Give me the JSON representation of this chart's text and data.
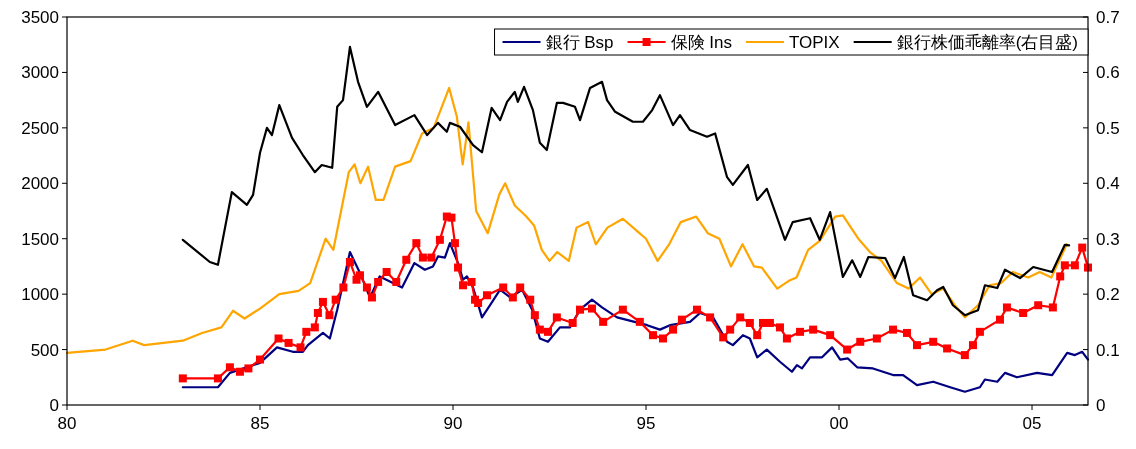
{
  "chart_data": {
    "type": "line",
    "xlim": [
      1980,
      2006.45
    ],
    "xticks": [
      {
        "value": 1980,
        "label": "80"
      },
      {
        "value": 1985,
        "label": "85"
      },
      {
        "value": 1990,
        "label": "90"
      },
      {
        "value": 1995,
        "label": "95"
      },
      {
        "value": 2000,
        "label": "00"
      },
      {
        "value": 2005,
        "label": "05"
      }
    ],
    "ylim": [
      0,
      3500
    ],
    "yticks": [
      0,
      500,
      1000,
      1500,
      2000,
      2500,
      3000,
      3500
    ],
    "y2lim": [
      0,
      0.7
    ],
    "y2ticks": [
      0,
      0.1,
      0.2,
      0.3,
      0.4,
      0.5,
      0.6,
      0.7
    ],
    "grid": false,
    "legend": "top right",
    "series": [
      {
        "name": "銀行 Bsp",
        "color": "#000080",
        "marker": "none",
        "x": [
          1983.0,
          1983.91,
          1984.22,
          1985.0,
          1985.44,
          1985.85,
          1986.11,
          1986.24,
          1986.63,
          1986.81,
          1987.0,
          1987.33,
          1987.59,
          1987.85,
          1988.1,
          1988.68,
          1989.0,
          1989.27,
          1989.48,
          1989.61,
          1989.79,
          1989.92,
          1990.13,
          1990.26,
          1990.36,
          1990.52,
          1990.75,
          1990.96,
          1991.22,
          1991.48,
          1991.79,
          1992.05,
          1992.25,
          1992.46,
          1992.77,
          1993.03,
          1993.29,
          1993.6,
          1993.86,
          1994.25,
          1995.03,
          1995.36,
          1995.62,
          1996.14,
          1996.4,
          1996.74,
          1997.1,
          1997.25,
          1997.51,
          1997.69,
          1997.88,
          1998.13,
          1998.47,
          1998.78,
          1998.91,
          1999.04,
          1999.25,
          1999.56,
          1999.82,
          2000.03,
          2000.23,
          2000.47,
          2000.88,
          2001.4,
          2001.66,
          2002.02,
          2002.44,
          2002.88,
          2003.26,
          2003.65,
          2003.78,
          2004.1,
          2004.3,
          2004.61,
          2005.13,
          2005.52,
          2005.91,
          2006.11,
          2006.3,
          2006.45
        ],
        "values": [
          160,
          160,
          290,
          380,
          520,
          480,
          480,
          540,
          650,
          600,
          860,
          1380,
          1190,
          970,
          1160,
          1060,
          1280,
          1220,
          1250,
          1340,
          1330,
          1460,
          1280,
          1130,
          1160,
          1060,
          790,
          900,
          1040,
          970,
          1040,
          860,
          600,
          570,
          700,
          700,
          860,
          950,
          880,
          790,
          720,
          680,
          720,
          750,
          830,
          790,
          570,
          540,
          630,
          600,
          430,
          500,
          390,
          300,
          360,
          330,
          430,
          430,
          520,
          410,
          420,
          340,
          330,
          270,
          270,
          180,
          210,
          160,
          120,
          160,
          230,
          210,
          290,
          250,
          290,
          270,
          470,
          450,
          480,
          410
        ]
      },
      {
        "name": "保険 Ins",
        "color": "#ff0000",
        "marker": "square",
        "x": [
          1983.0,
          1983.91,
          1984.22,
          1984.48,
          1984.7,
          1985.0,
          1985.48,
          1985.74,
          1986.05,
          1986.2,
          1986.42,
          1986.5,
          1986.63,
          1986.8,
          1986.96,
          1987.16,
          1987.33,
          1987.5,
          1987.59,
          1987.77,
          1987.9,
          1988.06,
          1988.28,
          1988.53,
          1988.79,
          1989.05,
          1989.22,
          1989.44,
          1989.66,
          1989.84,
          1989.96,
          1990.05,
          1990.13,
          1990.26,
          1990.48,
          1990.57,
          1990.65,
          1990.88,
          1991.3,
          1991.55,
          1991.74,
          1992.0,
          1992.12,
          1992.25,
          1992.46,
          1992.69,
          1993.1,
          1993.29,
          1993.6,
          1993.89,
          1994.4,
          1994.84,
          1995.18,
          1995.44,
          1995.7,
          1995.93,
          1996.32,
          1996.66,
          1997.0,
          1997.18,
          1997.44,
          1997.69,
          1997.88,
          1998.03,
          1998.21,
          1998.47,
          1998.65,
          1998.99,
          1999.33,
          1999.77,
          2000.21,
          2000.55,
          2000.98,
          2001.4,
          2001.76,
          2002.02,
          2002.44,
          2002.8,
          2003.26,
          2003.47,
          2003.65,
          2004.17,
          2004.35,
          2004.77,
          2005.16,
          2005.54,
          2005.73,
          2005.85,
          2006.11,
          2006.3,
          2006.45
        ],
        "values": [
          240,
          240,
          340,
          300,
          330,
          410,
          600,
          560,
          520,
          660,
          700,
          830,
          930,
          810,
          950,
          1060,
          1290,
          1130,
          1170,
          1060,
          970,
          1110,
          1200,
          1110,
          1310,
          1460,
          1330,
          1330,
          1490,
          1700,
          1690,
          1460,
          1240,
          1080,
          1110,
          950,
          920,
          990,
          1060,
          970,
          1060,
          950,
          810,
          680,
          660,
          790,
          740,
          860,
          870,
          750,
          860,
          750,
          630,
          600,
          680,
          770,
          860,
          790,
          610,
          680,
          790,
          740,
          630,
          740,
          740,
          700,
          600,
          660,
          680,
          630,
          500,
          570,
          600,
          680,
          650,
          540,
          570,
          510,
          450,
          540,
          660,
          770,
          880,
          830,
          900,
          880,
          1160,
          1260,
          1260,
          1420,
          1240
        ]
      },
      {
        "name": "TOPIX",
        "color": "#ffa500",
        "marker": "none",
        "x": [
          1980.0,
          1981.0,
          1981.7,
          1982.0,
          1982.5,
          1983.0,
          1983.5,
          1984.0,
          1984.3,
          1984.6,
          1985.0,
          1985.5,
          1986.0,
          1986.3,
          1986.7,
          1986.9,
          1987.3,
          1987.45,
          1987.6,
          1987.8,
          1988.0,
          1988.2,
          1988.5,
          1988.9,
          1989.2,
          1989.5,
          1989.9,
          1990.1,
          1990.25,
          1990.4,
          1990.6,
          1990.9,
          1991.2,
          1991.35,
          1991.6,
          1991.9,
          1992.1,
          1992.3,
          1992.5,
          1992.7,
          1993.0,
          1993.2,
          1993.5,
          1993.7,
          1994.0,
          1994.4,
          1994.8,
          1995.0,
          1995.3,
          1995.6,
          1995.9,
          1996.3,
          1996.6,
          1996.9,
          1997.2,
          1997.5,
          1997.8,
          1998.0,
          1998.4,
          1998.7,
          1998.9,
          1999.2,
          1999.5,
          1999.9,
          2000.1,
          2000.5,
          2000.8,
          2001.1,
          2001.5,
          2001.8,
          2002.1,
          2002.4,
          2002.7,
          2003.0,
          2003.26,
          2003.6,
          2003.9,
          2004.2,
          2004.5,
          2004.9,
          2005.2,
          2005.5,
          2005.9
        ],
        "values": [
          470,
          500,
          580,
          540,
          560,
          580,
          650,
          700,
          850,
          780,
          870,
          1000,
          1030,
          1100,
          1500,
          1400,
          2100,
          2170,
          2000,
          2150,
          1850,
          1850,
          2150,
          2200,
          2450,
          2500,
          2860,
          2600,
          2170,
          2550,
          1750,
          1550,
          1900,
          2000,
          1800,
          1700,
          1620,
          1400,
          1300,
          1380,
          1300,
          1600,
          1650,
          1450,
          1600,
          1680,
          1560,
          1500,
          1300,
          1450,
          1650,
          1700,
          1550,
          1500,
          1250,
          1450,
          1250,
          1240,
          1050,
          1120,
          1150,
          1400,
          1480,
          1700,
          1710,
          1500,
          1380,
          1300,
          1100,
          1050,
          1150,
          1000,
          1050,
          900,
          790,
          900,
          1080,
          1100,
          1200,
          1150,
          1200,
          1150,
          1450
        ]
      },
      {
        "name": "銀行株価乖離率(右目盛)",
        "color": "#000000",
        "marker": "none",
        "axis": "y2",
        "x": [
          1983.0,
          1983.7,
          1983.91,
          1984.27,
          1984.66,
          1984.82,
          1985.0,
          1985.18,
          1985.31,
          1985.5,
          1985.83,
          1986.11,
          1986.42,
          1986.6,
          1986.87,
          1987.0,
          1987.15,
          1987.33,
          1987.54,
          1987.77,
          1988.06,
          1988.5,
          1989.0,
          1989.33,
          1989.61,
          1989.84,
          1989.92,
          1990.18,
          1990.52,
          1990.75,
          1991.0,
          1991.22,
          1991.4,
          1991.6,
          1991.68,
          1991.84,
          1992.07,
          1992.25,
          1992.43,
          1992.69,
          1992.85,
          1993.16,
          1993.29,
          1993.55,
          1993.86,
          1993.99,
          1994.2,
          1994.66,
          1994.92,
          1995.16,
          1995.36,
          1995.7,
          1995.88,
          1996.14,
          1996.58,
          1996.79,
          1997.1,
          1997.25,
          1997.64,
          1997.88,
          1998.13,
          1998.3,
          1998.6,
          1998.8,
          1999.25,
          1999.5,
          1999.77,
          2000.1,
          2000.34,
          2000.55,
          2000.76,
          2001.2,
          2001.45,
          2001.68,
          2001.92,
          2002.28,
          2002.54,
          2002.7,
          2002.95,
          2003.26,
          2003.6,
          2003.78,
          2004.1,
          2004.3,
          2004.69,
          2005.03,
          2005.52,
          2005.85,
          2005.96
        ],
        "values": [
          0.298,
          0.258,
          0.253,
          0.384,
          0.361,
          0.379,
          0.455,
          0.5,
          0.487,
          0.541,
          0.482,
          0.451,
          0.42,
          0.433,
          0.428,
          0.538,
          0.55,
          0.646,
          0.583,
          0.538,
          0.565,
          0.505,
          0.523,
          0.487,
          0.509,
          0.493,
          0.509,
          0.502,
          0.469,
          0.456,
          0.536,
          0.514,
          0.547,
          0.565,
          0.547,
          0.574,
          0.532,
          0.473,
          0.46,
          0.545,
          0.545,
          0.538,
          0.514,
          0.572,
          0.583,
          0.55,
          0.529,
          0.511,
          0.511,
          0.532,
          0.559,
          0.505,
          0.523,
          0.496,
          0.484,
          0.49,
          0.411,
          0.397,
          0.433,
          0.37,
          0.39,
          0.357,
          0.298,
          0.33,
          0.337,
          0.298,
          0.348,
          0.231,
          0.261,
          0.231,
          0.267,
          0.265,
          0.229,
          0.267,
          0.198,
          0.189,
          0.207,
          0.213,
          0.18,
          0.162,
          0.171,
          0.216,
          0.211,
          0.244,
          0.229,
          0.249,
          0.24,
          0.289,
          0.288
        ]
      }
    ]
  }
}
